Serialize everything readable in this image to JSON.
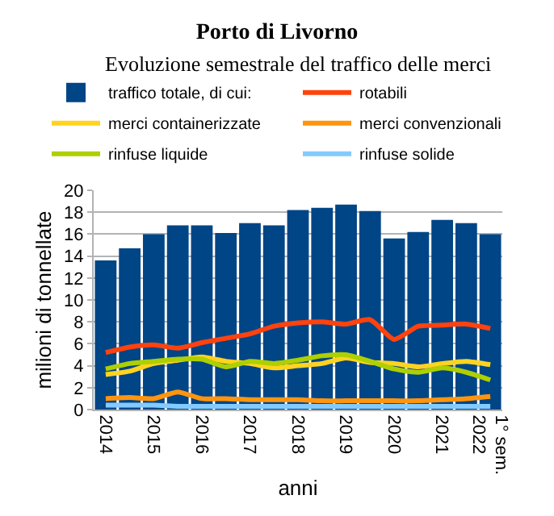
{
  "chart_data": {
    "type": "bar",
    "title": "Porto di Livorno",
    "subtitle": "Evoluzione semestrale del traffico delle merci",
    "xlabel": "anni",
    "ylabel": "milioni di tonnellate",
    "categories": [
      "2014",
      null,
      "2015",
      null,
      "2016",
      null,
      "2017",
      null,
      "2018",
      null,
      "2019",
      null,
      "2020",
      null,
      "2021",
      null,
      "1° sem.\n2022"
    ],
    "series": [
      {
        "name": "traffico totale, di cui:",
        "color": "#004586",
        "values": [
          13.6,
          14.7,
          16.0,
          16.8,
          16.8,
          16.1,
          17.0,
          16.8,
          18.2,
          18.4,
          18.7,
          18.1,
          15.6,
          16.2,
          17.3,
          17.0,
          16.0
        ]
      },
      {
        "name": "rotabili",
        "type": "line",
        "color": "#ff420e",
        "values": [
          5.2,
          5.7,
          5.9,
          5.6,
          6.1,
          6.5,
          6.9,
          7.6,
          7.9,
          8.0,
          7.8,
          8.2,
          6.4,
          7.6,
          7.7,
          7.8,
          7.4
        ]
      },
      {
        "name": "merci containerizzate",
        "type": "line",
        "color": "#ffd320",
        "values": [
          3.2,
          3.5,
          4.2,
          4.5,
          4.8,
          4.4,
          4.2,
          3.8,
          4.0,
          4.2,
          4.7,
          4.3,
          4.2,
          3.9,
          4.2,
          4.4,
          4.1
        ]
      },
      {
        "name": "merci convenzionali",
        "type": "line",
        "color": "#ff950e",
        "values": [
          1.0,
          1.1,
          1.0,
          1.6,
          1.0,
          1.0,
          0.9,
          0.9,
          0.9,
          0.8,
          0.8,
          0.8,
          0.8,
          0.8,
          0.9,
          1.0,
          1.2
        ]
      },
      {
        "name": "rinfuse liquide",
        "type": "line",
        "color": "#aecf00",
        "values": [
          3.7,
          4.2,
          4.4,
          4.6,
          4.6,
          3.9,
          4.4,
          4.2,
          4.5,
          4.9,
          5.0,
          4.4,
          3.7,
          3.4,
          3.8,
          3.4,
          2.7
        ]
      },
      {
        "name": "rinfuse solide",
        "type": "line",
        "color": "#83caff",
        "values": [
          0.4,
          0.4,
          0.4,
          0.3,
          0.3,
          0.3,
          0.3,
          0.3,
          0.3,
          0.3,
          0.3,
          0.3,
          0.3,
          0.3,
          0.3,
          0.3,
          0.3
        ]
      }
    ],
    "ylim": [
      0,
      20
    ],
    "yticks": [
      0,
      2,
      4,
      6,
      8,
      10,
      12,
      14,
      16,
      18,
      20
    ],
    "grid": "y",
    "legend": "top",
    "marker": "none",
    "line_style": "solid"
  }
}
